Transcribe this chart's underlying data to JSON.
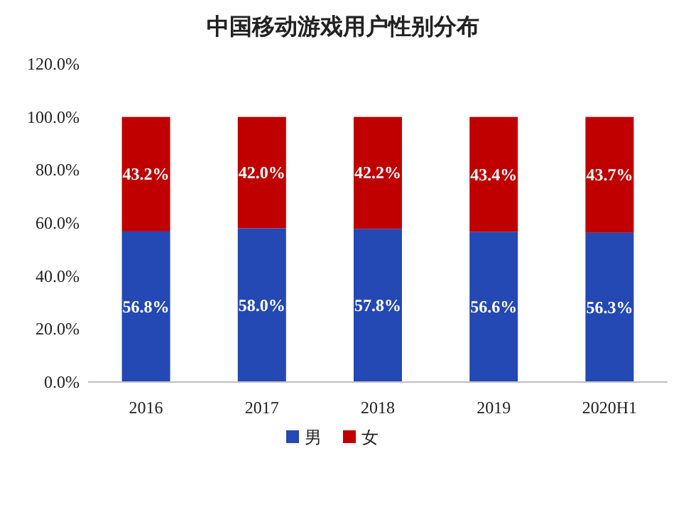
{
  "chart_data": {
    "type": "bar",
    "title": "中国移动游戏用户性别分布",
    "stacked": true,
    "categories": [
      "2016",
      "2017",
      "2018",
      "2019",
      "2020H1"
    ],
    "series": [
      {
        "name": "男",
        "color": "#2448b4",
        "values": [
          56.8,
          58.0,
          57.8,
          56.6,
          56.3
        ],
        "value_labels": [
          "56.8%",
          "58.0%",
          "57.8%",
          "56.6%",
          "56.3%"
        ]
      },
      {
        "name": "女",
        "color": "#c00000",
        "values": [
          43.2,
          42.0,
          42.2,
          43.4,
          43.7
        ],
        "value_labels": [
          "43.2%",
          "42.0%",
          "42.2%",
          "43.4%",
          "43.7%"
        ]
      }
    ],
    "ylim": [
      0,
      120
    ],
    "yticks": [
      {
        "value": 0,
        "label": "0.0%"
      },
      {
        "value": 20,
        "label": "20.0%"
      },
      {
        "value": 40,
        "label": "40.0%"
      },
      {
        "value": 60,
        "label": "60.0%"
      },
      {
        "value": 80,
        "label": "80.0%"
      },
      {
        "value": 100,
        "label": "100.0%"
      },
      {
        "value": 120,
        "label": "120.0%"
      }
    ],
    "grid": false,
    "legend": "bottom"
  }
}
